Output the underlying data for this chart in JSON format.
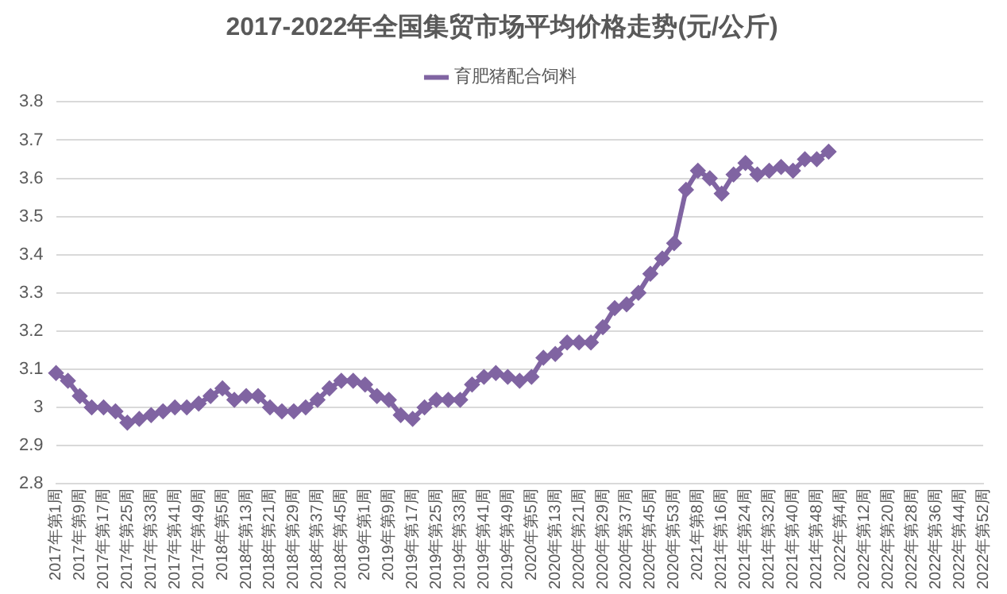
{
  "chart_data": {
    "type": "line",
    "title": "2017-2022年全国集贸市场平均价格走势(元/公斤)",
    "categories": [
      "2017年第1周",
      null,
      "2017年第9周",
      null,
      "2017年第17周",
      null,
      "2017年第25周",
      null,
      "2017年第33周",
      null,
      "2017年第41周",
      null,
      "2017年第49周",
      null,
      "2018年第5周",
      null,
      "2018年第13周",
      null,
      "2018年第21周",
      null,
      "2018年第29周",
      null,
      "2018年第37周",
      null,
      "2018年第45周",
      null,
      "2019年第1周",
      null,
      "2019年第9周",
      null,
      "2019年第17周",
      null,
      "2019年第25周",
      null,
      "2019年第33周",
      null,
      "2019年第41周",
      null,
      "2019年第49周",
      null,
      "2020年第5周",
      null,
      "2020年第13周",
      null,
      "2020年第21周",
      null,
      "2020年第29周",
      null,
      "2020年第37周",
      null,
      "2020年第45周",
      null,
      "2020年第53周",
      null,
      "2021年第8周",
      null,
      "2021年第16周",
      null,
      "2021年第24周",
      null,
      "2021年第32周",
      null,
      "2021年第40周",
      null,
      "2021年第48周",
      null,
      "2022年第4周",
      null,
      "2022年第12周",
      null,
      "2022年第20周",
      null,
      "2022年第28周",
      null,
      "2022年第36周",
      null,
      "2022年第44周",
      null,
      "2022年第52周"
    ],
    "series": [
      {
        "name": "育肥猪配合饲料",
        "color": "#8064a2",
        "values": [
          3.09,
          3.07,
          3.03,
          3.0,
          3.0,
          2.99,
          2.96,
          2.97,
          2.98,
          2.99,
          3.0,
          3.0,
          3.01,
          3.03,
          3.05,
          3.02,
          3.03,
          3.03,
          3.0,
          2.99,
          2.99,
          3.0,
          3.02,
          3.05,
          3.07,
          3.07,
          3.06,
          3.03,
          3.02,
          2.98,
          2.97,
          3.0,
          3.02,
          3.02,
          3.02,
          3.06,
          3.08,
          3.09,
          3.08,
          3.07,
          3.08,
          3.13,
          3.14,
          3.17,
          3.17,
          3.17,
          3.21,
          3.26,
          3.27,
          3.3,
          3.35,
          3.39,
          3.43,
          3.57,
          3.62,
          3.6,
          3.56,
          3.61,
          3.64,
          3.61,
          3.62,
          3.63,
          3.62,
          3.65,
          3.65,
          3.67,
          null,
          null,
          null,
          null,
          null,
          null,
          null,
          null,
          null,
          null,
          null,
          null,
          null
        ]
      }
    ],
    "ylim": [
      2.8,
      3.8
    ],
    "yticks": [
      2.8,
      2.9,
      3,
      3.1,
      3.2,
      3.3,
      3.4,
      3.5,
      3.6,
      3.7,
      3.8
    ],
    "grid": "y",
    "legend": "top",
    "marker": "diamond",
    "line_style": "solid"
  }
}
